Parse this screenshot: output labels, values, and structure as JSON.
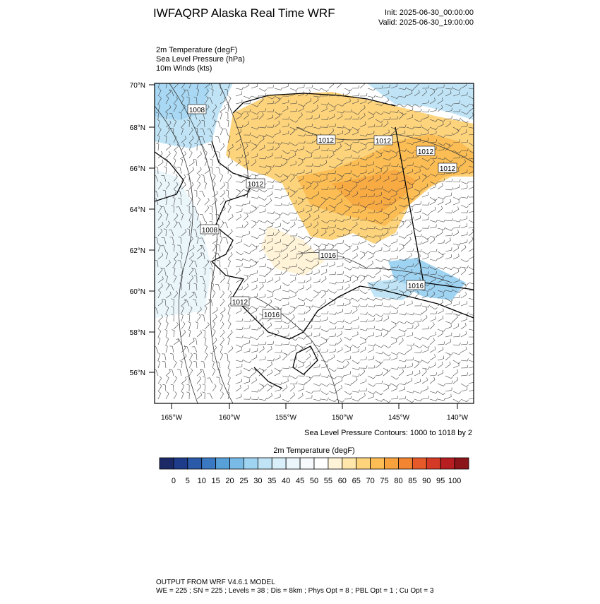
{
  "header": {
    "title": "IWFAQRP Alaska Real Time WRF",
    "init": "Init: 2025-06-30_00:00:00",
    "valid": "Valid: 2025-06-30_19:00:00"
  },
  "fields": [
    "2m Temperature   (degF)",
    "Sea Level Pressure   (hPa)",
    "10m Winds   (kts)"
  ],
  "map": {
    "lat_labels": [
      "70°N",
      "68°N",
      "66°N",
      "64°N",
      "62°N",
      "60°N",
      "58°N",
      "56°N"
    ],
    "lon_labels": [
      "165°W",
      "160°W",
      "155°W",
      "150°W",
      "145°W",
      "140°W"
    ],
    "contour_labels": [
      "1008",
      "1012",
      "1012",
      "1012",
      "1012",
      "1012",
      "1008",
      "1016",
      "1016",
      "1012",
      "1016"
    ],
    "contour_note": "Sea Level Pressure Contours: 1000 to 1018 by 2"
  },
  "colorbar": {
    "title": "2m Temperature  (degF)",
    "labels": [
      "0",
      "5",
      "10",
      "15",
      "20",
      "25",
      "30",
      "35",
      "40",
      "45",
      "50",
      "55",
      "60",
      "65",
      "70",
      "75",
      "80",
      "85",
      "90",
      "95",
      "100"
    ],
    "colors": [
      "#1b2a66",
      "#1f3c8a",
      "#2a5aa8",
      "#3a79c2",
      "#58a0d8",
      "#79bae6",
      "#9fd3f2",
      "#c0e4f6",
      "#d9eff9",
      "#ebf6fb",
      "#f6fafc",
      "#ffffff",
      "#fff3d8",
      "#ffe6aa",
      "#fdd37c",
      "#fbbd54",
      "#f7a23c",
      "#f28532",
      "#e65a2a",
      "#d43a25",
      "#b61e22",
      "#8c1519"
    ]
  },
  "footer": {
    "line1": "OUTPUT FROM WRF V4.6.1 MODEL",
    "line2": "WE = 225 ; SN = 225 ; Levels = 38 ; Dis = 8km ; Phys Opt = 8 ; PBL Opt = 1 ; Cu Opt = 3"
  }
}
